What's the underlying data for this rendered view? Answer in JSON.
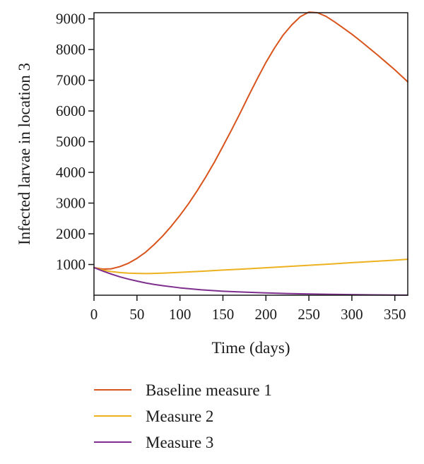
{
  "chart_data": {
    "type": "line",
    "xlabel": "Time (days)",
    "ylabel": "Infected larvae in location 3",
    "xlim": [
      0,
      365
    ],
    "ylim": [
      0,
      9200
    ],
    "x_ticks": [
      0,
      50,
      100,
      150,
      200,
      250,
      300,
      350
    ],
    "y_ticks": [
      1000,
      2000,
      3000,
      4000,
      5000,
      6000,
      7000,
      8000,
      9000
    ],
    "grid": false,
    "legend_position": "bottom",
    "series": [
      {
        "name": "Baseline measure 1",
        "color": "#D9541C",
        "x": [
          0,
          10,
          20,
          30,
          40,
          50,
          60,
          70,
          80,
          90,
          100,
          110,
          120,
          130,
          140,
          150,
          160,
          170,
          180,
          190,
          200,
          210,
          220,
          230,
          240,
          250,
          260,
          270,
          280,
          290,
          300,
          310,
          320,
          330,
          340,
          350,
          365
        ],
        "values": [
          900,
          850,
          860,
          930,
          1040,
          1200,
          1400,
          1650,
          1930,
          2250,
          2600,
          2980,
          3400,
          3850,
          4330,
          4850,
          5380,
          5930,
          6500,
          7050,
          7580,
          8050,
          8470,
          8800,
          9070,
          9220,
          9200,
          9080,
          8900,
          8700,
          8500,
          8280,
          8050,
          7820,
          7580,
          7340,
          6950
        ]
      },
      {
        "name": "Measure 2",
        "color": "#EDB120",
        "x": [
          0,
          10,
          20,
          30,
          40,
          50,
          60,
          70,
          80,
          100,
          125,
          150,
          175,
          200,
          225,
          250,
          275,
          300,
          325,
          350,
          365
        ],
        "values": [
          900,
          820,
          770,
          740,
          720,
          710,
          705,
          710,
          720,
          745,
          780,
          820,
          855,
          895,
          935,
          975,
          1015,
          1060,
          1100,
          1140,
          1170
        ]
      },
      {
        "name": "Measure 3",
        "color": "#7E2F8E",
        "x": [
          0,
          10,
          20,
          30,
          40,
          50,
          60,
          70,
          80,
          100,
          125,
          150,
          175,
          200,
          225,
          250,
          275,
          300,
          325,
          350,
          365
        ],
        "values": [
          900,
          790,
          690,
          600,
          525,
          460,
          400,
          350,
          310,
          240,
          175,
          130,
          100,
          75,
          55,
          40,
          30,
          20,
          12,
          6,
          3
        ]
      }
    ]
  }
}
